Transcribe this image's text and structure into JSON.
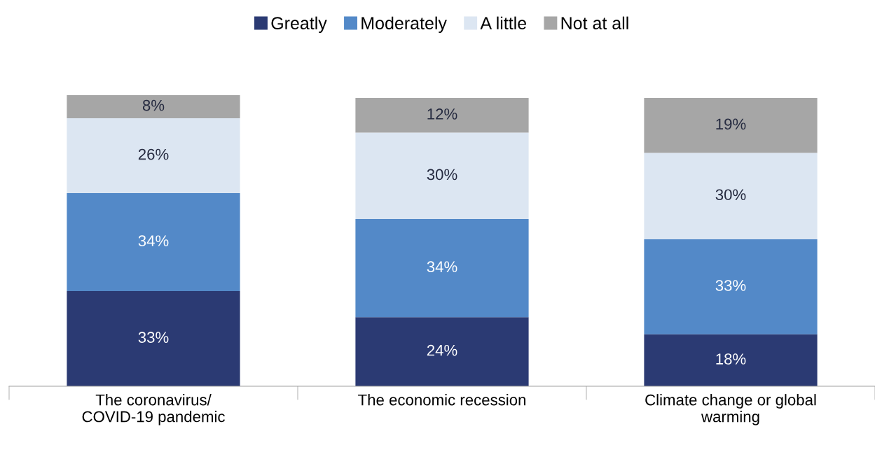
{
  "chart_data": {
    "type": "bar",
    "stacked": true,
    "legend": "top",
    "grid": false,
    "categories": [
      "The coronavirus/\nCOVID-19 pandemic",
      "The economic recession",
      "Climate change or global\nwarming"
    ],
    "series": [
      {
        "name": "Greatly",
        "color": "#2b3a73",
        "values": [
          33,
          24,
          18
        ],
        "value_labels": [
          "33%",
          "24%",
          "18%"
        ]
      },
      {
        "name": "Moderately",
        "color": "#5389c8",
        "values": [
          34,
          34,
          33
        ],
        "value_labels": [
          "34%",
          "34%",
          "33%"
        ]
      },
      {
        "name": "A little",
        "color": "#dce6f2",
        "values": [
          26,
          30,
          30
        ],
        "value_labels": [
          "26%",
          "30%",
          "30%"
        ]
      },
      {
        "name": "Not at all",
        "color": "#a6a6a6",
        "values": [
          8,
          12,
          19
        ],
        "value_labels": [
          "8%",
          "12%",
          "19%"
        ]
      }
    ]
  }
}
